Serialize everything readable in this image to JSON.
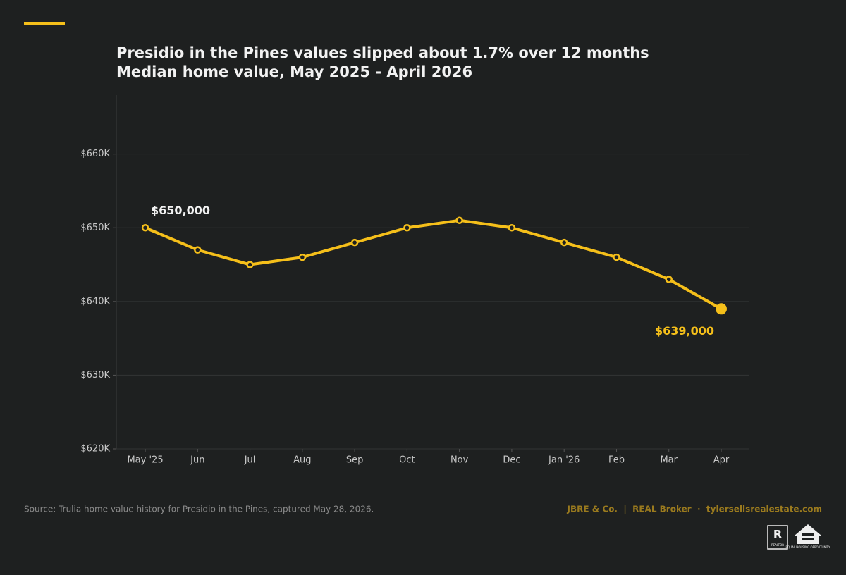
{
  "chart_data": {
    "type": "line",
    "title": "Presidio in the Pines values slipped about 1.7% over 12 months",
    "subtitle": "Median home value, May 2025 - April 2026",
    "categories": [
      "May '25",
      "Jun",
      "Jul",
      "Aug",
      "Sep",
      "Oct",
      "Nov",
      "Dec",
      "Jan '26",
      "Feb",
      "Mar",
      "Apr"
    ],
    "values": [
      650000,
      647000,
      645000,
      646000,
      648000,
      650000,
      651000,
      650000,
      648000,
      646000,
      643000,
      639000
    ],
    "value_labels": [
      "$650,000",
      null,
      null,
      null,
      null,
      null,
      null,
      null,
      null,
      null,
      null,
      "$639,000"
    ],
    "color": "#f5bf1a",
    "ylim": [
      620000,
      668000
    ],
    "yticks": [
      {
        "value": 620000,
        "label": "$620K"
      },
      {
        "value": 630000,
        "label": "$630K"
      },
      {
        "value": 640000,
        "label": "$640K"
      },
      {
        "value": 650000,
        "label": "$650K"
      },
      {
        "value": 660000,
        "label": "$660K"
      }
    ],
    "grid": true
  },
  "footer": {
    "source": "Source: Trulia home value history for Presidio in the Pines, captured May 28, 2026.",
    "brand": "JBRE & Co.  |  REAL Broker  ·  tylersellsrealestate.com",
    "logo_realtor": "REALTOR",
    "logo_housing": "EQUAL HOUSING OPPORTUNITY"
  }
}
